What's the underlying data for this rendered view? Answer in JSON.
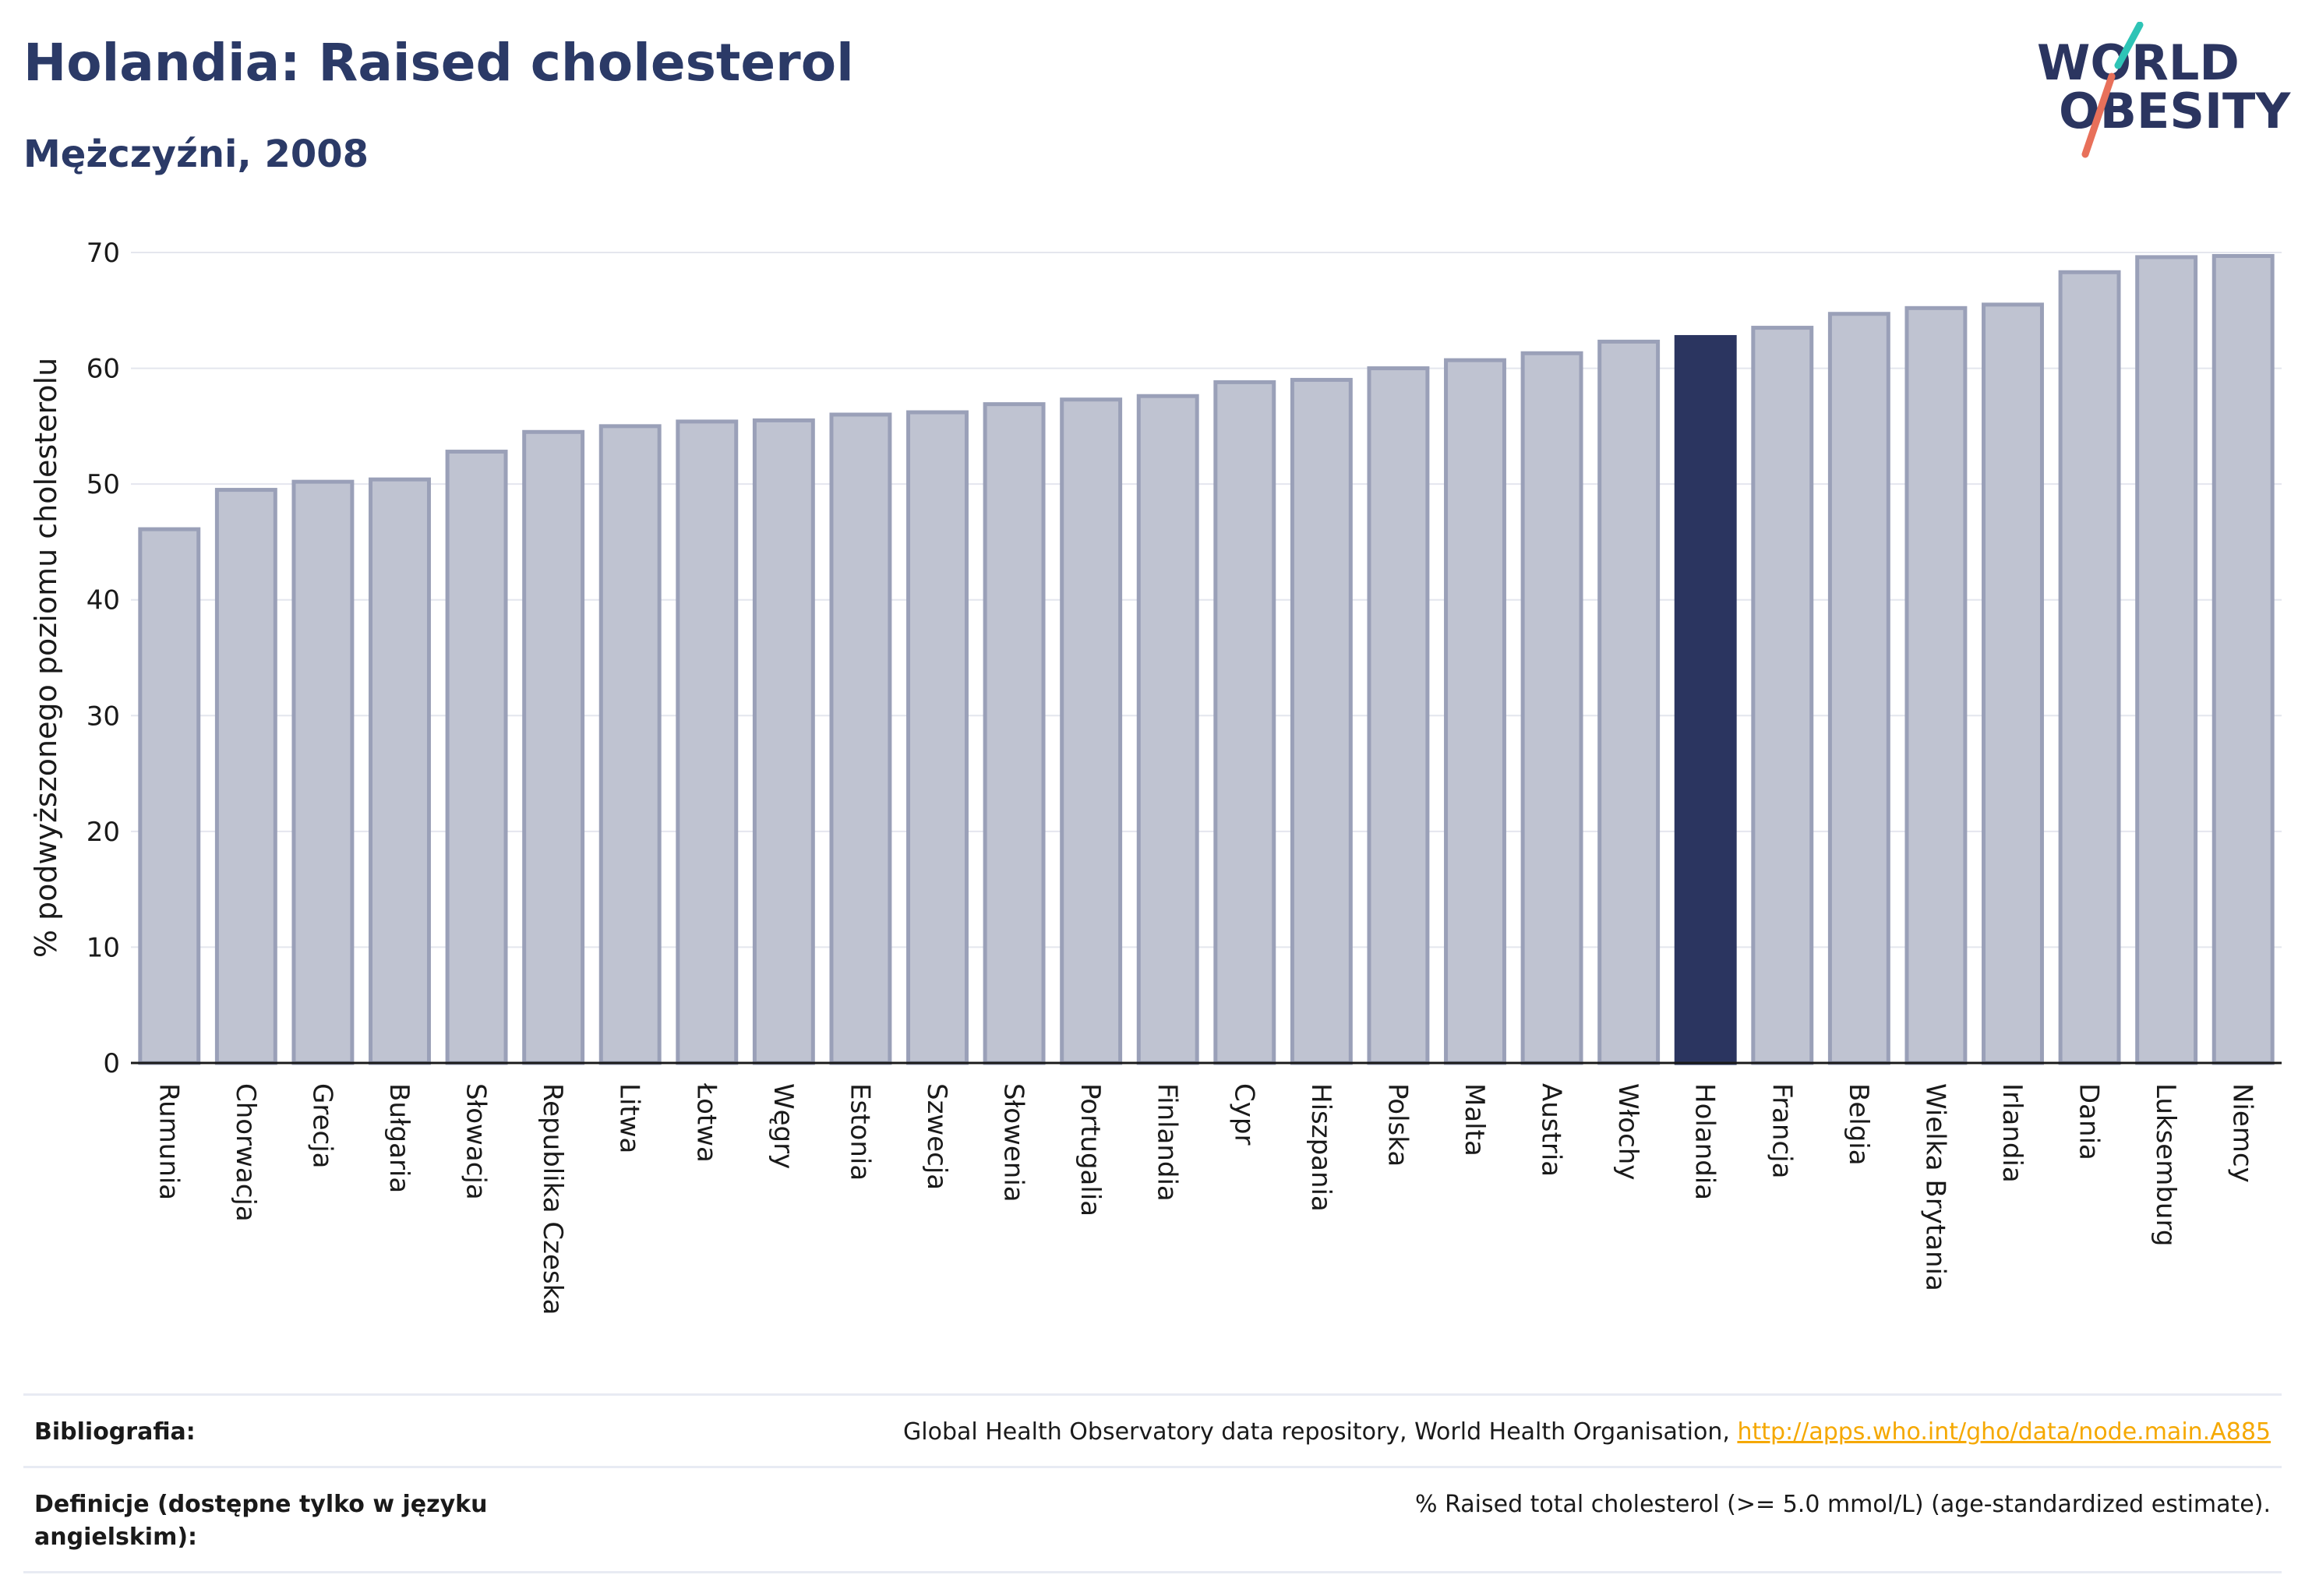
{
  "header": {
    "title": "Holandia: Raised cholesterol",
    "subtitle": "Mężczyźni, 2008"
  },
  "logo": {
    "line1": "WORLD",
    "line2": "OBESITY"
  },
  "colors": {
    "bar": "#bfc3d1",
    "bar_border": "#9aa0b8",
    "highlight": "#2b3560",
    "title": "#2b3a67",
    "link": "#f5a800"
  },
  "chart_data": {
    "type": "bar",
    "title": "Holandia: Raised cholesterol",
    "subtitle": "Mężczyźni, 2008",
    "ylabel": "% podwyższonego poziomu cholesterolu",
    "xlabel": "",
    "ylim": [
      0,
      70
    ],
    "yticks": [
      0,
      10,
      20,
      30,
      40,
      50,
      60,
      70
    ],
    "grid": true,
    "highlight": "Holandia",
    "categories": [
      "Rumunia",
      "Chorwacja",
      "Grecja",
      "Bułgaria",
      "Słowacja",
      "Republika Czeska",
      "Litwa",
      "Łotwa",
      "Węgry",
      "Estonia",
      "Szwecja",
      "Słowenia",
      "Portugalia",
      "Finlandia",
      "Cypr",
      "Hiszpania",
      "Polska",
      "Malta",
      "Austria",
      "Włochy",
      "Holandia",
      "Francja",
      "Belgia",
      "Wielka Brytania",
      "Irlandia",
      "Dania",
      "Luksemburg",
      "Niemcy"
    ],
    "values": [
      46.1,
      49.5,
      50.2,
      50.4,
      52.8,
      54.5,
      55.0,
      55.4,
      55.5,
      56.0,
      56.2,
      56.9,
      57.3,
      57.6,
      58.8,
      59.0,
      60.0,
      60.7,
      61.3,
      62.3,
      62.7,
      63.5,
      64.7,
      65.2,
      65.5,
      68.3,
      69.6,
      69.7
    ]
  },
  "footer": {
    "bibliography_label": "Bibliografia:",
    "bibliography_text": "Global Health Observatory data repository, World Health Organisation, ",
    "bibliography_link": "http://apps.who.int/gho/data/node.main.A885",
    "definition_label": "Definicje (dostępne tylko w języku angielskim):",
    "definition_text": "% Raised total cholesterol (>= 5.0 mmol/L) (age-standardized estimate)."
  }
}
